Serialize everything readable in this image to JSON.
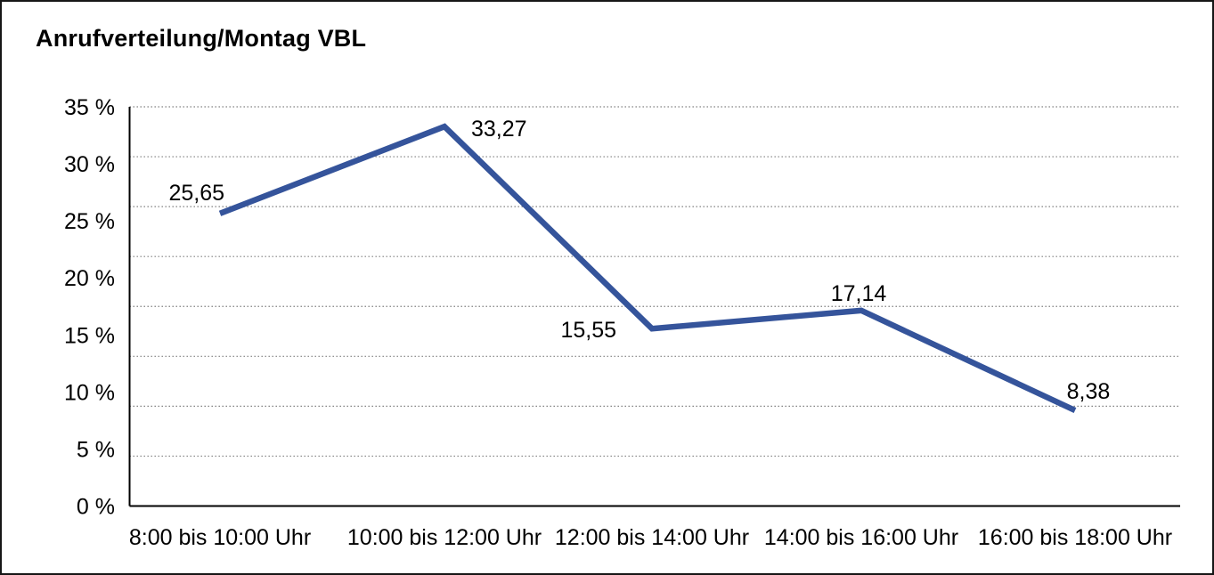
{
  "chart_data": {
    "type": "line",
    "title": "Anrufverteilung/Montag VBL",
    "categories": [
      "8:00 bis 10:00 Uhr",
      "10:00 bis 12:00 Uhr",
      "12:00 bis 14:00 Uhr",
      "14:00 bis 16:00 Uhr",
      "16:00 bis 18:00 Uhr"
    ],
    "values": [
      25.65,
      33.27,
      15.55,
      17.14,
      8.38
    ],
    "value_labels": [
      "25,65",
      "33,27",
      "15,55",
      "17,14",
      "8,38"
    ],
    "y_ticks": [
      "35 %",
      "30 %",
      "25 %",
      "20 %",
      "15 %",
      "10 %",
      "5 %",
      "0 %"
    ],
    "y_tick_values": [
      35,
      30,
      25,
      20,
      15,
      10,
      5,
      0
    ],
    "ylim": [
      0,
      35
    ],
    "xlabel": "",
    "ylabel": "",
    "legend": "none",
    "grid": "horizontal dotted, 8 equal divisions",
    "colors": {
      "line": "#35549B",
      "text": "#000000",
      "grid": "#767676",
      "axis": "#000000",
      "background": "#FFFFFF"
    }
  }
}
